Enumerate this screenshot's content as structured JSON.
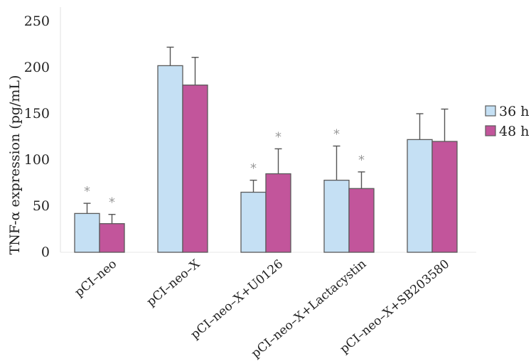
{
  "chart_data": {
    "type": "bar",
    "ylabel": "TNF-α expression (pg/mL)",
    "ylim": [
      0,
      250
    ],
    "yticks": [
      0,
      50,
      100,
      150,
      200,
      250
    ],
    "categories": [
      "pCI–neo",
      "pCI–neo–X",
      "pCI–neo–X+U0126",
      "pCI–neo–X+Lactacystin",
      "pCI–neo–X+SB203580"
    ],
    "series": [
      {
        "name": "36 h",
        "color": "#c5e0f4",
        "values": [
          42,
          202,
          65,
          78,
          122
        ],
        "errors": [
          11,
          20,
          13,
          37,
          28
        ],
        "significance": [
          "*",
          "",
          "*",
          "*",
          ""
        ]
      },
      {
        "name": "48 h",
        "color": "#c2559b",
        "values": [
          31,
          181,
          85,
          69,
          120
        ],
        "errors": [
          10,
          30,
          27,
          18,
          35
        ],
        "significance": [
          "*",
          "",
          "*",
          "*",
          ""
        ]
      }
    ],
    "legend_position": "right",
    "grid": false
  }
}
